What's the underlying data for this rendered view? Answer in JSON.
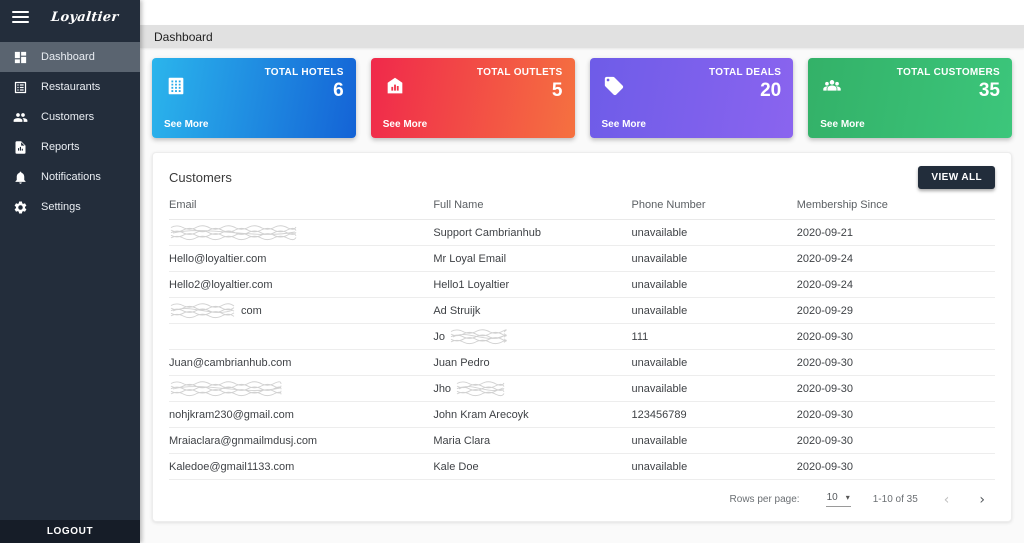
{
  "sidebar": {
    "logo": "Loyaltier",
    "items": [
      {
        "label": "Dashboard",
        "icon": "dashboard-icon",
        "active": true
      },
      {
        "label": "Restaurants",
        "icon": "restaurants-icon",
        "active": false
      },
      {
        "label": "Customers",
        "icon": "customers-icon",
        "active": false
      },
      {
        "label": "Reports",
        "icon": "reports-icon",
        "active": false
      },
      {
        "label": "Notifications",
        "icon": "notifications-icon",
        "active": false
      },
      {
        "label": "Settings",
        "icon": "settings-icon",
        "active": false
      }
    ],
    "logout_label": "LOGOUT"
  },
  "header": {
    "title": "Dashboard"
  },
  "cards": [
    {
      "label": "TOTAL HOTELS",
      "value": "6",
      "see_more": "See More",
      "icon": "hotel-building-icon",
      "gradient_from": "#2bb5ec",
      "gradient_to": "#1463d6"
    },
    {
      "label": "TOTAL OUTLETS",
      "value": "5",
      "see_more": "See More",
      "icon": "store-icon",
      "gradient_from": "#f0294b",
      "gradient_to": "#f57140"
    },
    {
      "label": "TOTAL DEALS",
      "value": "20",
      "see_more": "See More",
      "icon": "tag-icon",
      "gradient_from": "#6e5ce8",
      "gradient_to": "#8a64ef"
    },
    {
      "label": "TOTAL CUSTOMERS",
      "value": "35",
      "see_more": "See More",
      "icon": "group-icon",
      "gradient_from": "#33b168",
      "gradient_to": "#3cc67b"
    }
  ],
  "customers_panel": {
    "title": "Customers",
    "view_all_label": "VIEW ALL",
    "columns": [
      "Email",
      "Full Name",
      "Phone Number",
      "Membership Since"
    ],
    "rows": [
      {
        "email": {
          "text": "",
          "redacted": true,
          "redacted_width": 130
        },
        "full_name": {
          "text": "Support Cambrianhub"
        },
        "phone": {
          "text": "unavailable"
        },
        "membership": {
          "text": "2020-09-21"
        }
      },
      {
        "email": {
          "text": "Hello@loyaltier.com"
        },
        "full_name": {
          "text": "Mr Loyal Email"
        },
        "phone": {
          "text": "unavailable"
        },
        "membership": {
          "text": "2020-09-24"
        }
      },
      {
        "email": {
          "text": "Hello2@loyaltier.com"
        },
        "full_name": {
          "text": "Hello1 Loyaltier"
        },
        "phone": {
          "text": "unavailable"
        },
        "membership": {
          "text": "2020-09-24"
        }
      },
      {
        "email": {
          "text": "com",
          "redacted": true,
          "redacted_position": "before",
          "redacted_width": 68
        },
        "full_name": {
          "text": "Ad Struijk"
        },
        "phone": {
          "text": "unavailable"
        },
        "membership": {
          "text": "2020-09-29"
        }
      },
      {
        "email": {
          "text": ""
        },
        "full_name": {
          "text": "Jo",
          "redacted": true,
          "redacted_position": "after",
          "redacted_width": 58
        },
        "phone": {
          "text": "111"
        },
        "membership": {
          "text": "2020-09-30"
        }
      },
      {
        "email": {
          "text": "Juan@cambrianhub.com"
        },
        "full_name": {
          "text": "Juan Pedro"
        },
        "phone": {
          "text": "unavailable"
        },
        "membership": {
          "text": "2020-09-30"
        }
      },
      {
        "email": {
          "text": "",
          "redacted": true,
          "redacted_width": 115
        },
        "full_name": {
          "text": "Jho",
          "redacted": true,
          "redacted_position": "after",
          "redacted_width": 52
        },
        "phone": {
          "text": "unavailable"
        },
        "membership": {
          "text": "2020-09-30"
        }
      },
      {
        "email": {
          "text": "nohjkram230@gmail.com"
        },
        "full_name": {
          "text": "John Kram Arecoyk"
        },
        "phone": {
          "text": "123456789"
        },
        "membership": {
          "text": "2020-09-30"
        }
      },
      {
        "email": {
          "text": "Mraiaclara@gnmailmdusj.com"
        },
        "full_name": {
          "text": "Maria Clara"
        },
        "phone": {
          "text": "unavailable"
        },
        "membership": {
          "text": "2020-09-30"
        }
      },
      {
        "email": {
          "text": "Kaledoe@gmail1133.com"
        },
        "full_name": {
          "text": "Kale Doe"
        },
        "phone": {
          "text": "unavailable"
        },
        "membership": {
          "text": "2020-09-30"
        }
      }
    ],
    "pagination": {
      "rows_per_page_label": "Rows per page:",
      "rows_per_page_value": "10",
      "range_label": "1-10 of 35"
    }
  }
}
